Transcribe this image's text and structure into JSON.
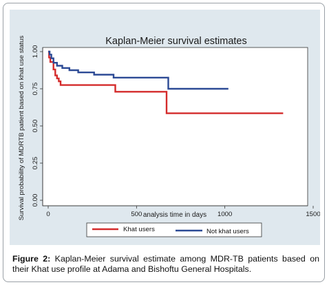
{
  "chart_data": {
    "type": "line",
    "title": "Kaplan-Meier survival estimates",
    "xlabel": "analysis time in days",
    "ylabel": "Survival probability of MDRTB patient  based on khat use status",
    "xlim": [
      0,
      1500
    ],
    "ylim": [
      0,
      1
    ],
    "x_ticks": [
      "0",
      "500",
      "1000",
      "1500"
    ],
    "y_ticks": [
      "0.00",
      "0.25",
      "0.50",
      "0.75",
      "1.00"
    ],
    "grid": false,
    "legend_position": "bottom",
    "series": [
      {
        "name": "Khat users",
        "color": "#d42a2a",
        "x": [
          0,
          5,
          5,
          12,
          12,
          30,
          30,
          40,
          40,
          50,
          50,
          60,
          60,
          70,
          70,
          380,
          380,
          670,
          670,
          1330
        ],
        "y": [
          1.0,
          1.0,
          0.96,
          0.96,
          0.93,
          0.93,
          0.88,
          0.88,
          0.84,
          0.84,
          0.82,
          0.82,
          0.8,
          0.8,
          0.775,
          0.775,
          0.73,
          0.73,
          0.585,
          0.585
        ]
      },
      {
        "name": "Not khat users",
        "color": "#2c4a95",
        "x": [
          0,
          8,
          8,
          18,
          18,
          30,
          30,
          50,
          50,
          80,
          80,
          120,
          120,
          170,
          170,
          260,
          260,
          370,
          370,
          680,
          680,
          1020
        ],
        "y": [
          1.0,
          1.0,
          0.98,
          0.98,
          0.955,
          0.955,
          0.925,
          0.925,
          0.905,
          0.905,
          0.89,
          0.89,
          0.875,
          0.875,
          0.86,
          0.86,
          0.845,
          0.845,
          0.825,
          0.825,
          0.75,
          0.75
        ]
      }
    ]
  },
  "caption": {
    "label": "Figure 2:",
    "text": " Kaplan-Meier survival estimate among MDR-TB patients based on their Khat use profile at Adama and Bishoftu General Hospitals."
  }
}
